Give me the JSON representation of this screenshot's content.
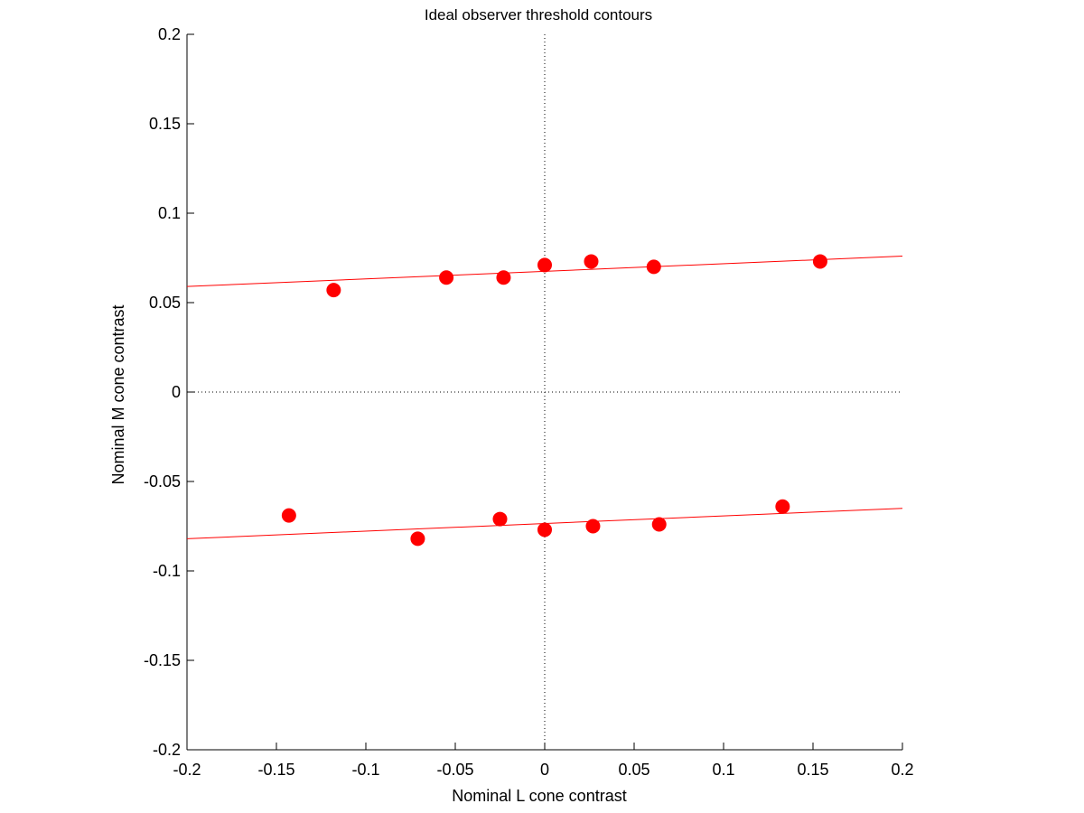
{
  "chart_data": {
    "type": "scatter",
    "title": "Ideal observer threshold contours",
    "xlabel": "Nominal L cone contrast",
    "ylabel": "Nominal M cone contrast",
    "xlim": [
      -0.2,
      0.2
    ],
    "ylim": [
      -0.2,
      0.2
    ],
    "xticks": [
      -0.2,
      -0.15,
      -0.1,
      -0.05,
      0,
      0.05,
      0.1,
      0.15,
      0.2
    ],
    "yticks": [
      -0.2,
      -0.15,
      -0.1,
      -0.05,
      0,
      0.05,
      0.1,
      0.15,
      0.2
    ],
    "xtick_labels": [
      "-0.2",
      "-0.15",
      "-0.1",
      "-0.05",
      "0",
      "0.05",
      "0.1",
      "0.15",
      "0.2"
    ],
    "ytick_labels": [
      "-0.2",
      "-0.15",
      "-0.1",
      "-0.05",
      "0",
      "0.05",
      "0.1",
      "0.15",
      "0.2"
    ],
    "grid": false,
    "reference_lines": [
      {
        "orientation": "vertical",
        "value": 0,
        "style": "dotted"
      },
      {
        "orientation": "horizontal",
        "value": 0,
        "style": "dotted"
      }
    ],
    "marker_color": "#ff0000",
    "line_color": "#ff0000",
    "series": [
      {
        "points": [
          {
            "x": -0.118,
            "y": 0.057
          },
          {
            "x": -0.055,
            "y": 0.064
          },
          {
            "x": -0.023,
            "y": 0.064
          },
          {
            "x": 0.0,
            "y": 0.071
          },
          {
            "x": 0.026,
            "y": 0.073
          },
          {
            "x": 0.061,
            "y": 0.07
          },
          {
            "x": 0.154,
            "y": 0.073
          }
        ],
        "fit_line": [
          {
            "x": -0.2,
            "y": 0.059
          },
          {
            "x": 0.2,
            "y": 0.076
          }
        ]
      },
      {
        "points": [
          {
            "x": -0.143,
            "y": -0.069
          },
          {
            "x": -0.071,
            "y": -0.082
          },
          {
            "x": -0.025,
            "y": -0.071
          },
          {
            "x": 0.0,
            "y": -0.077
          },
          {
            "x": 0.027,
            "y": -0.075
          },
          {
            "x": 0.064,
            "y": -0.074
          },
          {
            "x": 0.133,
            "y": -0.064
          }
        ],
        "fit_line": [
          {
            "x": -0.2,
            "y": -0.082
          },
          {
            "x": 0.2,
            "y": -0.065
          }
        ]
      }
    ]
  }
}
